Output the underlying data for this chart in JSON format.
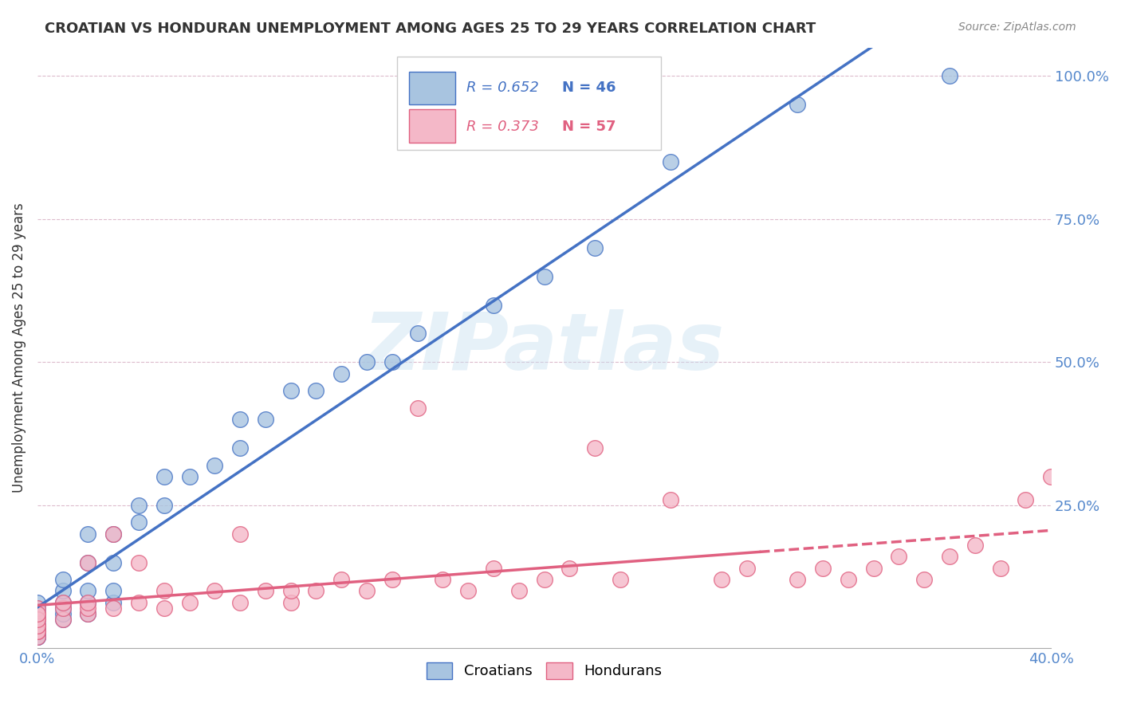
{
  "title": "CROATIAN VS HONDURAN UNEMPLOYMENT AMONG AGES 25 TO 29 YEARS CORRELATION CHART",
  "source": "Source: ZipAtlas.com",
  "ylabel": "Unemployment Among Ages 25 to 29 years",
  "xlim": [
    0.0,
    0.4
  ],
  "ylim": [
    0.0,
    1.05
  ],
  "xticks": [
    0.0,
    0.1,
    0.2,
    0.3,
    0.4
  ],
  "xticklabels": [
    "0.0%",
    "",
    "",
    "",
    "40.0%"
  ],
  "yticks": [
    0.0,
    0.25,
    0.5,
    0.75,
    1.0
  ],
  "yticklabels": [
    "",
    "25.0%",
    "50.0%",
    "75.0%",
    "100.0%"
  ],
  "croatian_R": 0.652,
  "croatian_N": 46,
  "honduran_R": 0.373,
  "honduran_N": 57,
  "blue_color": "#a8c4e0",
  "blue_line_color": "#4472c4",
  "pink_color": "#f4b8c8",
  "pink_line_color": "#e06080",
  "watermark": "ZIPatlas",
  "croatian_x": [
    0.0,
    0.0,
    0.0,
    0.0,
    0.0,
    0.0,
    0.0,
    0.0,
    0.0,
    0.0,
    0.01,
    0.01,
    0.01,
    0.01,
    0.01,
    0.01,
    0.02,
    0.02,
    0.02,
    0.02,
    0.02,
    0.03,
    0.03,
    0.03,
    0.03,
    0.04,
    0.04,
    0.05,
    0.05,
    0.06,
    0.07,
    0.08,
    0.08,
    0.09,
    0.1,
    0.11,
    0.12,
    0.13,
    0.14,
    0.15,
    0.18,
    0.2,
    0.22,
    0.25,
    0.3,
    0.36
  ],
  "croatian_y": [
    0.02,
    0.03,
    0.04,
    0.05,
    0.06,
    0.07,
    0.08,
    0.03,
    0.02,
    0.04,
    0.05,
    0.06,
    0.07,
    0.08,
    0.1,
    0.12,
    0.06,
    0.08,
    0.1,
    0.15,
    0.2,
    0.08,
    0.1,
    0.15,
    0.2,
    0.22,
    0.25,
    0.25,
    0.3,
    0.3,
    0.32,
    0.35,
    0.4,
    0.4,
    0.45,
    0.45,
    0.48,
    0.5,
    0.5,
    0.55,
    0.6,
    0.65,
    0.7,
    0.85,
    0.95,
    1.0
  ],
  "honduran_x": [
    0.0,
    0.0,
    0.0,
    0.0,
    0.0,
    0.0,
    0.0,
    0.0,
    0.0,
    0.0,
    0.01,
    0.01,
    0.01,
    0.02,
    0.02,
    0.02,
    0.02,
    0.03,
    0.03,
    0.04,
    0.04,
    0.05,
    0.05,
    0.06,
    0.07,
    0.08,
    0.08,
    0.09,
    0.1,
    0.1,
    0.11,
    0.12,
    0.13,
    0.14,
    0.15,
    0.16,
    0.17,
    0.18,
    0.19,
    0.2,
    0.21,
    0.22,
    0.23,
    0.25,
    0.27,
    0.28,
    0.3,
    0.31,
    0.32,
    0.33,
    0.34,
    0.35,
    0.36,
    0.37,
    0.38,
    0.39,
    0.4
  ],
  "honduran_y": [
    0.02,
    0.03,
    0.04,
    0.05,
    0.06,
    0.07,
    0.03,
    0.04,
    0.05,
    0.06,
    0.05,
    0.07,
    0.08,
    0.06,
    0.07,
    0.08,
    0.15,
    0.07,
    0.2,
    0.08,
    0.15,
    0.07,
    0.1,
    0.08,
    0.1,
    0.08,
    0.2,
    0.1,
    0.08,
    0.1,
    0.1,
    0.12,
    0.1,
    0.12,
    0.42,
    0.12,
    0.1,
    0.14,
    0.1,
    0.12,
    0.14,
    0.35,
    0.12,
    0.26,
    0.12,
    0.14,
    0.12,
    0.14,
    0.12,
    0.14,
    0.16,
    0.12,
    0.16,
    0.18,
    0.14,
    0.26,
    0.3
  ]
}
